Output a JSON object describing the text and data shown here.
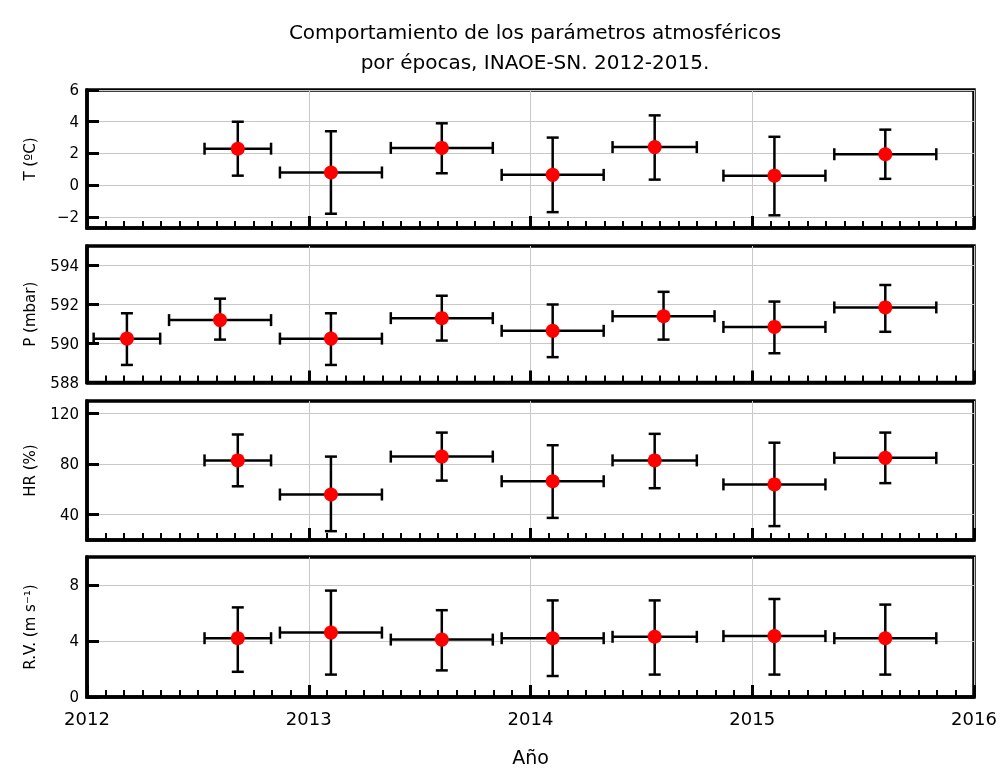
{
  "chart_data": [
    {
      "type": "scatter",
      "title": "Comportamiento de los parámetros atmosféricos\npor épocas, INAOE-SN. 2012-2015.",
      "ylabel": "T (ºC)",
      "tick_labels": "y",
      "grid": true,
      "marker": "circle",
      "xlim": [
        2012,
        2016
      ],
      "xticks": [
        2012,
        2013,
        2014,
        2015,
        2016
      ],
      "ylim": [
        -2.7,
        6
      ],
      "yticks": [
        {
          "value": -2,
          "label": "−2"
        },
        0,
        2,
        4,
        6
      ],
      "series": [
        {
          "color": "#ff0000",
          "x": [
            2012.68,
            2013.1,
            2013.6,
            2014.1,
            2014.56,
            2015.1,
            2015.6
          ],
          "values": [
            2.3,
            0.8,
            2.35,
            0.65,
            2.4,
            0.6,
            1.95
          ],
          "errors": [
            [
              0.6,
              4.0
            ],
            [
              -1.8,
              3.4
            ],
            [
              0.75,
              3.9
            ],
            [
              -1.7,
              3.0
            ],
            [
              0.35,
              4.4
            ],
            [
              -1.9,
              3.05
            ],
            [
              0.4,
              3.5
            ]
          ],
          "xerrors": [
            0.15,
            0.23,
            0.23,
            0.23,
            0.19,
            0.23,
            0.23
          ]
        }
      ]
    },
    {
      "type": "scatter",
      "ylabel": "P (mbar)",
      "tick_labels": "y",
      "grid": true,
      "marker": "circle",
      "xlim": [
        2012,
        2016
      ],
      "xticks": [
        2012,
        2013,
        2014,
        2015,
        2016
      ],
      "ylim": [
        588,
        595
      ],
      "yticks": [
        588,
        590,
        592,
        594
      ],
      "series": [
        {
          "color": "#ff0000",
          "x": [
            2012.18,
            2012.6,
            2013.1,
            2013.6,
            2014.1,
            2014.6,
            2015.1,
            2015.6
          ],
          "values": [
            590.25,
            591.2,
            590.25,
            591.3,
            590.65,
            591.4,
            590.85,
            591.85
          ],
          "errors": [
            [
              588.9,
              591.55
            ],
            [
              590.2,
              592.3
            ],
            [
              588.9,
              591.55
            ],
            [
              590.15,
              592.45
            ],
            [
              589.3,
              592.0
            ],
            [
              590.2,
              592.65
            ],
            [
              589.5,
              592.15
            ],
            [
              590.6,
              593.0
            ]
          ],
          "xerrors": [
            0.15,
            0.23,
            0.23,
            0.23,
            0.23,
            0.23,
            0.23,
            0.23
          ]
        }
      ]
    },
    {
      "type": "scatter",
      "ylabel": "HR (%)",
      "tick_labels": "y",
      "grid": true,
      "marker": "circle",
      "xlim": [
        2012,
        2016
      ],
      "xticks": [
        2012,
        2013,
        2014,
        2015,
        2016
      ],
      "ylim": [
        20,
        130
      ],
      "yticks": [
        40,
        80,
        120
      ],
      "series": [
        {
          "color": "#ff0000",
          "x": [
            2012.68,
            2013.1,
            2013.6,
            2014.1,
            2014.56,
            2015.1,
            2015.6
          ],
          "values": [
            83,
            56,
            86,
            66.5,
            83,
            64,
            85
          ],
          "errors": [
            [
              62.5,
              103.5
            ],
            [
              27,
              86
            ],
            [
              67,
              105
            ],
            [
              37.5,
              95
            ],
            [
              61,
              104
            ],
            [
              31,
              97
            ],
            [
              65,
              105
            ]
          ],
          "xerrors": [
            0.15,
            0.23,
            0.23,
            0.23,
            0.19,
            0.23,
            0.23
          ]
        }
      ]
    },
    {
      "type": "scatter",
      "ylabel": "R.V. (m s⁻¹)",
      "xlabel": "Año",
      "grid": true,
      "marker": "circle",
      "xlim": [
        2012,
        2016
      ],
      "xticks": [
        2012,
        2013,
        2014,
        2015,
        2016
      ],
      "ylim": [
        0,
        10
      ],
      "yticks": [
        0,
        4,
        8
      ],
      "series": [
        {
          "color": "#ff0000",
          "x": [
            2012.68,
            2013.1,
            2013.6,
            2014.1,
            2014.56,
            2015.1,
            2015.6
          ],
          "values": [
            4.2,
            4.6,
            4.1,
            4.2,
            4.3,
            4.35,
            4.2
          ],
          "errors": [
            [
              1.8,
              6.4
            ],
            [
              1.6,
              7.6
            ],
            [
              1.9,
              6.2
            ],
            [
              1.5,
              6.9
            ],
            [
              1.6,
              6.9
            ],
            [
              1.6,
              7.0
            ],
            [
              1.6,
              6.6
            ]
          ],
          "xerrors": [
            0.15,
            0.23,
            0.23,
            0.23,
            0.19,
            0.23,
            0.23
          ]
        }
      ]
    }
  ]
}
